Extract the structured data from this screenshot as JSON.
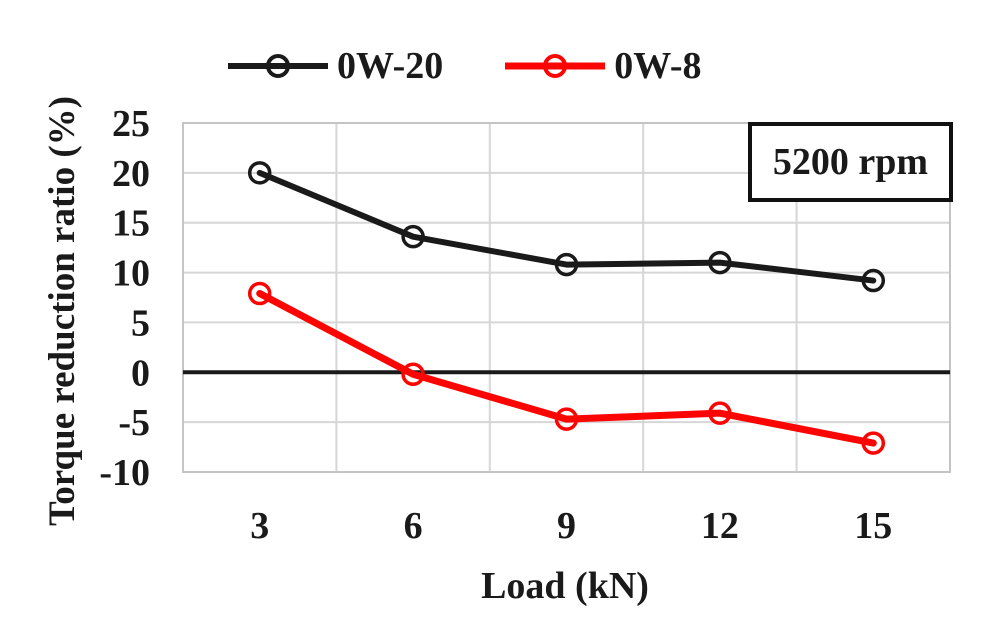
{
  "annotation": {
    "text": "5200 rpm"
  },
  "legend": {
    "items": [
      {
        "label": "0W-20",
        "color": "#1a1a1a"
      },
      {
        "label": "0W-8",
        "color": "#fb0502"
      }
    ]
  },
  "chart_data": {
    "type": "line",
    "title": "",
    "xlabel": "Load (kN)",
    "ylabel": "Torque reduction ratio  (%)",
    "x": [
      3,
      6,
      9,
      12,
      15
    ],
    "series": [
      {
        "name": "0W-20",
        "color": "#1a1a1a",
        "values": [
          20.0,
          13.6,
          10.8,
          11.0,
          9.2
        ]
      },
      {
        "name": "0W-8",
        "color": "#fb0502",
        "values": [
          7.9,
          -0.2,
          -4.7,
          -4.1,
          -7.1
        ]
      }
    ],
    "ylim": [
      -10,
      25
    ],
    "yticks": [
      25,
      20,
      15,
      10,
      5,
      0,
      -5,
      -10
    ],
    "ytick_step": 5,
    "grid": true,
    "gridline_color": "#d6d6d6",
    "border_color": "#c4c4c4",
    "zero_line": true,
    "zero_line_color": "#1a1a1a",
    "legend_position": "top",
    "annotation": "5200 rpm",
    "marker": "open-circle"
  }
}
